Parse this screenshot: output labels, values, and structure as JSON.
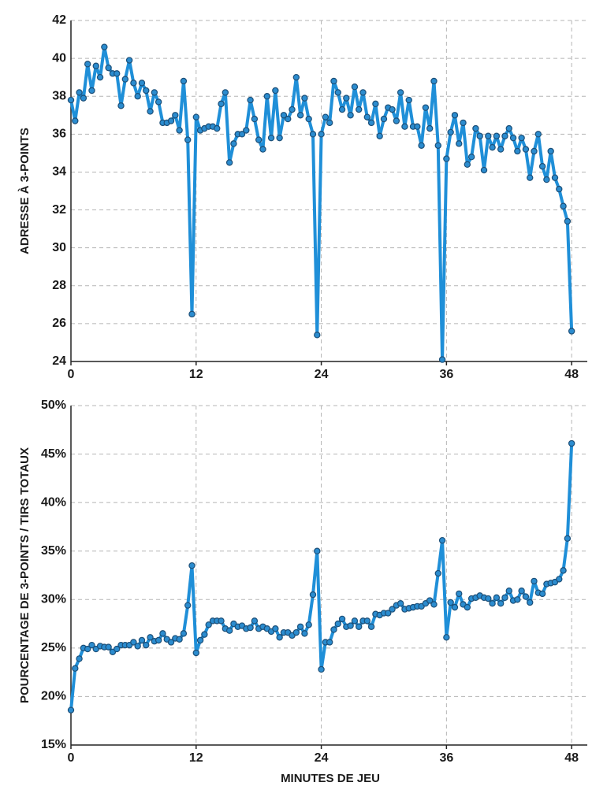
{
  "chart_data": [
    {
      "type": "line",
      "ylabel": "ADRESSE À 3-POINTS",
      "color": "#1f8fd8",
      "marker_color": "#2b8ccf",
      "grid": true,
      "xlim": [
        0,
        49.5
      ],
      "xticks": [
        0,
        12,
        24,
        36,
        48
      ],
      "ylim": [
        24,
        42
      ],
      "yticks": [
        24,
        26,
        28,
        30,
        32,
        34,
        36,
        38,
        40,
        42
      ],
      "x": [
        0,
        0.4,
        0.8,
        1.2,
        1.6,
        2,
        2.4,
        2.8,
        3.2,
        3.6,
        4,
        4.4,
        4.8,
        5.2,
        5.6,
        6,
        6.4,
        6.8,
        7.2,
        7.6,
        8,
        8.4,
        8.8,
        9.2,
        9.6,
        10,
        10.4,
        10.8,
        11.2,
        11.6,
        12,
        12.4,
        12.8,
        13.2,
        13.6,
        14,
        14.4,
        14.8,
        15.2,
        15.6,
        16,
        16.4,
        16.8,
        17.2,
        17.6,
        18,
        18.4,
        18.8,
        19.2,
        19.6,
        20,
        20.4,
        20.8,
        21.2,
        21.6,
        22,
        22.4,
        22.8,
        23.2,
        23.6,
        24,
        24.4,
        24.8,
        25.2,
        25.6,
        26,
        26.4,
        26.8,
        27.2,
        27.6,
        28,
        28.4,
        28.8,
        29.2,
        29.6,
        30,
        30.4,
        30.8,
        31.2,
        31.6,
        32,
        32.4,
        32.8,
        33.2,
        33.6,
        34,
        34.4,
        34.8,
        35.2,
        35.6,
        36,
        36.4,
        36.8,
        37.2,
        37.6,
        38,
        38.4,
        38.8,
        39.2,
        39.6,
        40,
        40.4,
        40.8,
        41.2,
        41.6,
        42,
        42.4,
        42.8,
        43.2,
        43.6,
        44,
        44.4,
        44.8,
        45.2,
        45.6,
        46,
        46.4,
        46.8,
        47.2,
        47.6,
        48
      ],
      "values": [
        37.8,
        36.7,
        38.2,
        37.9,
        39.7,
        38.3,
        39.6,
        39.0,
        40.6,
        39.5,
        39.2,
        39.2,
        37.5,
        38.9,
        39.9,
        38.7,
        38.0,
        38.7,
        38.3,
        37.2,
        38.2,
        37.7,
        36.6,
        36.6,
        36.7,
        37.0,
        36.2,
        38.8,
        35.7,
        26.5,
        36.9,
        36.2,
        36.3,
        36.4,
        36.4,
        36.3,
        37.6,
        38.2,
        34.5,
        35.5,
        36.0,
        36.0,
        36.2,
        37.8,
        36.8,
        35.7,
        35.2,
        38.0,
        35.8,
        38.3,
        35.8,
        37.0,
        36.8,
        37.3,
        39.0,
        37.0,
        37.9,
        36.8,
        36.0,
        25.4,
        36.0,
        36.9,
        36.6,
        38.8,
        38.2,
        37.3,
        37.9,
        37.0,
        38.5,
        37.3,
        38.2,
        36.9,
        36.6,
        37.6,
        35.9,
        36.8,
        37.4,
        37.3,
        36.7,
        38.2,
        36.4,
        37.8,
        36.4,
        36.4,
        35.4,
        37.4,
        36.3,
        38.8,
        35.4,
        24.1,
        34.7,
        36.1,
        37.0,
        35.5,
        36.6,
        34.4,
        34.8,
        36.3,
        35.9,
        34.1,
        35.9,
        35.3,
        35.9,
        35.2,
        35.9,
        36.3,
        35.8,
        35.1,
        35.8,
        35.2,
        33.7,
        35.1,
        36.0,
        34.3,
        33.6,
        35.1,
        33.7,
        33.1,
        32.2,
        31.4,
        25.6
      ]
    },
    {
      "type": "line",
      "xlabel": "MINUTES DE JEU",
      "ylabel": "POURCENTAGE DE 3-POINTS / TIRS TOTAUX",
      "color": "#1f8fd8",
      "marker_color": "#2b8ccf",
      "grid": true,
      "xlim": [
        0,
        49.5
      ],
      "xticks": [
        0,
        12,
        24,
        36,
        48
      ],
      "ylim": [
        15,
        50
      ],
      "yticks": [
        {
          "value": 15,
          "label": "15%"
        },
        {
          "value": 20,
          "label": "20%"
        },
        {
          "value": 25,
          "label": "25%"
        },
        {
          "value": 30,
          "label": "30%"
        },
        {
          "value": 35,
          "label": "35%"
        },
        {
          "value": 40,
          "label": "40%"
        },
        {
          "value": 45,
          "label": "45%"
        },
        {
          "value": 50,
          "label": "50%"
        }
      ],
      "x": [
        0,
        0.4,
        0.8,
        1.2,
        1.6,
        2,
        2.4,
        2.8,
        3.2,
        3.6,
        4,
        4.4,
        4.8,
        5.2,
        5.6,
        6,
        6.4,
        6.8,
        7.2,
        7.6,
        8,
        8.4,
        8.8,
        9.2,
        9.6,
        10,
        10.4,
        10.8,
        11.2,
        11.6,
        12,
        12.4,
        12.8,
        13.2,
        13.6,
        14,
        14.4,
        14.8,
        15.2,
        15.6,
        16,
        16.4,
        16.8,
        17.2,
        17.6,
        18,
        18.4,
        18.8,
        19.2,
        19.6,
        20,
        20.4,
        20.8,
        21.2,
        21.6,
        22,
        22.4,
        22.8,
        23.2,
        23.6,
        24,
        24.4,
        24.8,
        25.2,
        25.6,
        26,
        26.4,
        26.8,
        27.2,
        27.6,
        28,
        28.4,
        28.8,
        29.2,
        29.6,
        30,
        30.4,
        30.8,
        31.2,
        31.6,
        32,
        32.4,
        32.8,
        33.2,
        33.6,
        34,
        34.4,
        34.8,
        35.2,
        35.6,
        36,
        36.4,
        36.8,
        37.2,
        37.6,
        38,
        38.4,
        38.8,
        39.2,
        39.6,
        40,
        40.4,
        40.8,
        41.2,
        41.6,
        42,
        42.4,
        42.8,
        43.2,
        43.6,
        44,
        44.4,
        44.8,
        45.2,
        45.6,
        46,
        46.4,
        46.8,
        47.2,
        47.6,
        48
      ],
      "values": [
        18.6,
        22.9,
        23.9,
        25.0,
        24.9,
        25.3,
        24.9,
        25.2,
        25.1,
        25.1,
        24.6,
        24.9,
        25.3,
        25.3,
        25.3,
        25.6,
        25.2,
        25.8,
        25.3,
        26.1,
        25.7,
        25.8,
        26.5,
        25.9,
        25.6,
        26.0,
        25.9,
        26.5,
        29.4,
        33.5,
        24.5,
        25.8,
        26.4,
        27.4,
        27.8,
        27.8,
        27.8,
        27.0,
        26.8,
        27.5,
        27.2,
        27.3,
        27.0,
        27.1,
        27.8,
        27.0,
        27.2,
        27.0,
        26.7,
        27.0,
        26.1,
        26.6,
        26.6,
        26.3,
        26.6,
        27.2,
        26.5,
        27.4,
        30.5,
        35.0,
        22.8,
        25.6,
        25.6,
        26.9,
        27.5,
        28.0,
        27.2,
        27.3,
        27.8,
        27.2,
        27.8,
        27.8,
        27.2,
        28.5,
        28.4,
        28.6,
        28.6,
        29.0,
        29.4,
        29.6,
        29.0,
        29.1,
        29.2,
        29.3,
        29.3,
        29.6,
        29.9,
        29.5,
        32.7,
        36.1,
        26.1,
        29.7,
        29.2,
        30.6,
        29.5,
        29.2,
        30.1,
        30.2,
        30.4,
        30.2,
        30.1,
        29.6,
        30.2,
        29.6,
        30.2,
        30.9,
        29.9,
        30.0,
        30.9,
        30.3,
        29.7,
        31.9,
        30.7,
        30.6,
        31.6,
        31.7,
        31.8,
        32.1,
        33.0,
        36.3,
        46.1
      ]
    }
  ]
}
